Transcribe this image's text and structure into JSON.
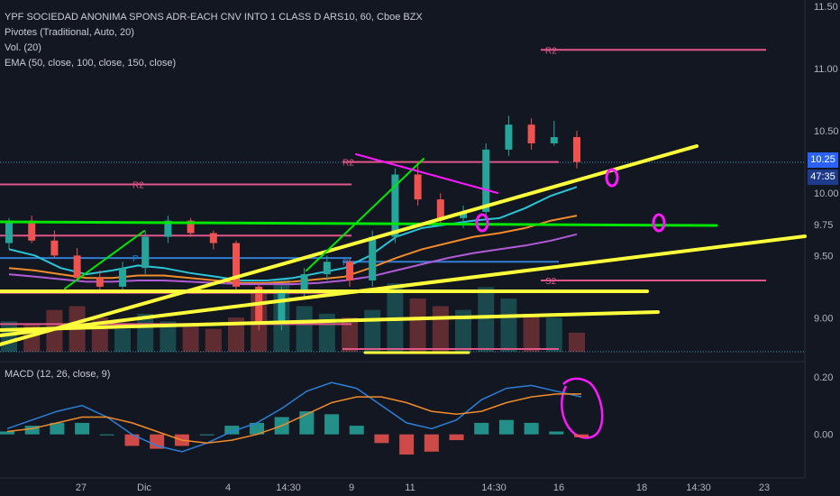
{
  "legend": {
    "title": "YPF SOCIEDAD ANONIMA SPONS ADR-EACH CNV INTO 1 CLASS D ARS10, 60, Cboe BZX",
    "pivots": "Pivotes (Traditional, Auto, 20)",
    "volume": "Vol. (20)",
    "ema": "EMA (50, close, 100, close, 150, close)",
    "macd": "MACD (12, 26, close, 9)"
  },
  "price_tag": {
    "last": "10.25",
    "countdown": "47:35"
  },
  "colors": {
    "background": "#131722",
    "up": "#26a69a",
    "down": "#ef5350",
    "trendline": "#ffff3b",
    "horizontal": "#00e600",
    "marker": "#ff19ff",
    "pivot_r2": "#e0578a",
    "pivot_p": "#2f7fd1",
    "ema50": "#2bc4d9",
    "ema100": "#f28b2b",
    "ema150": "#b15bd6"
  },
  "chart_data": [
    {
      "type": "candlestick",
      "title": "",
      "x_tick_labels": [
        "27",
        "Dic",
        "4",
        "14:30",
        "9",
        "11",
        "14:30",
        "16",
        "18",
        "14:30",
        "23"
      ],
      "y_tick_labels": [
        "9.00",
        "9.50",
        "9.75",
        "10.00",
        "10.50",
        "11.00",
        "11.50"
      ],
      "ylim": [
        8.75,
        11.55
      ],
      "grid": false,
      "last_price": 10.25,
      "pivot_labels": [
        "R2",
        "R2",
        "R2",
        "P",
        "P",
        "S2"
      ],
      "pivot_levels": [
        {
          "label": "R2",
          "value": 10.07,
          "segment": "left"
        },
        {
          "label": "",
          "value": 9.66,
          "segment": "left"
        },
        {
          "label": "P",
          "value": 9.48,
          "segment": "left"
        },
        {
          "label": "",
          "value": 9.2,
          "segment": "left"
        },
        {
          "label": "",
          "value": 8.95,
          "segment": "left"
        },
        {
          "label": "R2",
          "value": 10.25,
          "segment": "middle"
        },
        {
          "label": "P",
          "value": 9.45,
          "segment": "middle"
        },
        {
          "label": "",
          "value": 8.75,
          "segment": "middle"
        },
        {
          "label": "R2",
          "value": 11.15,
          "segment": "right"
        },
        {
          "label": "S2",
          "value": 9.3,
          "segment": "right"
        }
      ],
      "ema": [
        {
          "name": "EMA 50",
          "values": [
            9.55,
            9.5,
            9.4,
            9.35,
            9.38,
            9.42,
            9.4,
            9.36,
            9.33,
            9.3,
            9.3,
            9.32,
            9.36,
            9.4,
            9.5,
            9.65,
            9.72,
            9.75,
            9.78,
            9.8,
            9.88,
            9.98,
            10.05
          ]
        },
        {
          "name": "EMA 100",
          "values": [
            9.4,
            9.38,
            9.35,
            9.32,
            9.32,
            9.34,
            9.34,
            9.32,
            9.3,
            9.28,
            9.28,
            9.29,
            9.31,
            9.33,
            9.4,
            9.48,
            9.55,
            9.6,
            9.65,
            9.68,
            9.72,
            9.78,
            9.82
          ]
        },
        {
          "name": "EMA 150",
          "values": [
            9.35,
            9.33,
            9.31,
            9.29,
            9.29,
            9.3,
            9.3,
            9.29,
            9.28,
            9.27,
            9.27,
            9.27,
            9.28,
            9.3,
            9.33,
            9.38,
            9.43,
            9.48,
            9.52,
            9.55,
            9.58,
            9.62,
            9.67
          ]
        }
      ],
      "candles": [
        {
          "o": 9.6,
          "h": 9.8,
          "l": 9.55,
          "c": 9.78
        },
        {
          "o": 9.78,
          "h": 9.82,
          "l": 9.6,
          "c": 9.62
        },
        {
          "o": 9.62,
          "h": 9.7,
          "l": 9.48,
          "c": 9.5
        },
        {
          "o": 9.5,
          "h": 9.56,
          "l": 9.3,
          "c": 9.32
        },
        {
          "o": 9.32,
          "h": 9.38,
          "l": 9.2,
          "c": 9.25
        },
        {
          "o": 9.25,
          "h": 9.45,
          "l": 9.2,
          "c": 9.4
        },
        {
          "o": 9.4,
          "h": 9.7,
          "l": 9.35,
          "c": 9.65
        },
        {
          "o": 9.65,
          "h": 9.82,
          "l": 9.6,
          "c": 9.78
        },
        {
          "o": 9.78,
          "h": 9.8,
          "l": 9.65,
          "c": 9.68
        },
        {
          "o": 9.68,
          "h": 9.7,
          "l": 9.55,
          "c": 9.6
        },
        {
          "o": 9.6,
          "h": 9.62,
          "l": 9.2,
          "c": 9.25
        },
        {
          "o": 9.25,
          "h": 9.28,
          "l": 8.9,
          "c": 8.95
        },
        {
          "o": 8.95,
          "h": 9.25,
          "l": 8.9,
          "c": 9.2
        },
        {
          "o": 9.2,
          "h": 9.4,
          "l": 9.15,
          "c": 9.35
        },
        {
          "o": 9.35,
          "h": 9.5,
          "l": 9.3,
          "c": 9.45
        },
        {
          "o": 9.45,
          "h": 9.48,
          "l": 9.25,
          "c": 9.3
        },
        {
          "o": 9.3,
          "h": 9.7,
          "l": 9.25,
          "c": 9.65
        },
        {
          "o": 9.65,
          "h": 10.2,
          "l": 9.6,
          "c": 10.15
        },
        {
          "o": 10.15,
          "h": 10.25,
          "l": 9.9,
          "c": 9.95
        },
        {
          "o": 9.95,
          "h": 10.0,
          "l": 9.75,
          "c": 9.8
        },
        {
          "o": 9.8,
          "h": 9.9,
          "l": 9.72,
          "c": 9.85
        },
        {
          "o": 9.85,
          "h": 10.4,
          "l": 9.8,
          "c": 10.35
        },
        {
          "o": 10.35,
          "h": 10.62,
          "l": 10.3,
          "c": 10.55
        },
        {
          "o": 10.55,
          "h": 10.6,
          "l": 10.35,
          "c": 10.4
        },
        {
          "o": 10.4,
          "h": 10.58,
          "l": 10.38,
          "c": 10.45
        },
        {
          "o": 10.45,
          "h": 10.5,
          "l": 10.2,
          "c": 10.25
        }
      ],
      "volume": [
        40,
        35,
        55,
        60,
        45,
        30,
        50,
        40,
        35,
        30,
        45,
        80,
        95,
        60,
        50,
        45,
        55,
        90,
        70,
        60,
        55,
        85,
        70,
        50,
        45,
        25
      ]
    },
    {
      "type": "line",
      "title": "MACD (12, 26, close, 9)",
      "y_tick_labels": [
        "0.00",
        "0.20"
      ],
      "ylim": [
        -0.12,
        0.24
      ],
      "series": [
        {
          "name": "MACD",
          "values": [
            0.02,
            0.05,
            0.08,
            0.1,
            0.06,
            0.0,
            -0.04,
            -0.06,
            -0.03,
            0.01,
            0.04,
            0.09,
            0.15,
            0.18,
            0.16,
            0.1,
            0.04,
            0.02,
            0.05,
            0.12,
            0.16,
            0.17,
            0.15,
            0.13
          ]
        },
        {
          "name": "Signal",
          "values": [
            0.01,
            0.02,
            0.04,
            0.06,
            0.06,
            0.04,
            0.01,
            -0.02,
            -0.03,
            -0.02,
            0.0,
            0.03,
            0.07,
            0.11,
            0.13,
            0.13,
            0.11,
            0.08,
            0.07,
            0.08,
            0.11,
            0.13,
            0.14,
            0.14
          ]
        },
        {
          "name": "Histogram",
          "values": [
            0.01,
            0.03,
            0.04,
            0.04,
            0.0,
            -0.04,
            -0.05,
            -0.04,
            0.0,
            0.03,
            0.04,
            0.06,
            0.08,
            0.07,
            0.03,
            -0.03,
            -0.07,
            -0.06,
            -0.02,
            0.04,
            0.05,
            0.04,
            0.01,
            -0.01
          ]
        }
      ]
    }
  ]
}
